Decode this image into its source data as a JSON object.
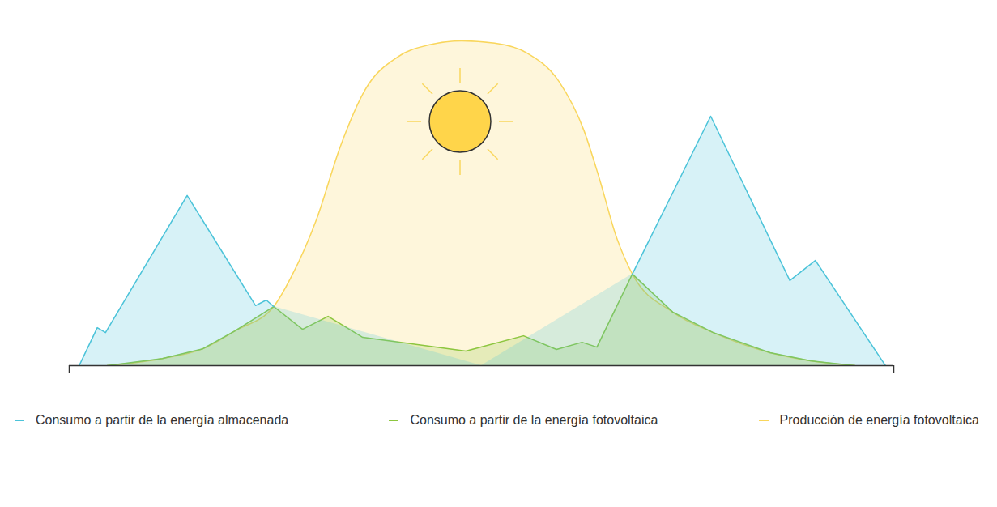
{
  "chart_data": {
    "type": "area",
    "xlim": [
      0,
      100
    ],
    "xticks": [
      0,
      100
    ],
    "ylim": [
      0,
      100
    ],
    "tick_labels": false,
    "grid": false,
    "legend": "bottom",
    "series": [
      {
        "name": "Consumo a partir de la energía almacenada",
        "color": "#4bc3d9",
        "line_style": "solid",
        "x": [
          1.2,
          3.4,
          4.4,
          14.3,
          22.6,
          23.9,
          24.8,
          50,
          68.3,
          77.8,
          87.4,
          90.5,
          99.0
        ],
        "values": [
          0,
          11.7,
          10.2,
          52.4,
          18.5,
          20.2,
          18.2,
          null,
          28.2,
          76.8,
          26.2,
          32.4,
          0
        ]
      },
      {
        "name": "Consumo a partir de la energía fotovoltaica",
        "color": "#8dc63f",
        "line_style": "solid",
        "x": [
          4.6,
          11.3,
          16.2,
          20.1,
          24.8,
          28.3,
          31.4,
          35.6,
          48.1,
          55.1,
          59.1,
          62.2,
          64.0,
          68.3,
          73.2,
          78.1,
          85.0,
          89.9,
          95.3
        ],
        "values": [
          0,
          2.2,
          5.2,
          10.7,
          18.2,
          11.2,
          15.2,
          8.7,
          4.5,
          9.2,
          5.0,
          7.2,
          5.7,
          28.2,
          16.5,
          10.2,
          4.0,
          1.5,
          0
        ]
      },
      {
        "name": "Producción de energía fotovoltaica",
        "color": "#f9d65c",
        "line_style": "smooth",
        "x": [
          4.6,
          11.3,
          16.2,
          20.1,
          24.8,
          27.0,
          30.0,
          32.9,
          35.9,
          39.8,
          43.7,
          47.6,
          51.6,
          55.5,
          59.4,
          62.4,
          64.3,
          66.3,
          68.3,
          73.2,
          78.1,
          85.0,
          89.9,
          95.3
        ],
        "values": [
          0,
          2.2,
          5.2,
          10.7,
          18.2,
          27.7,
          45.1,
          67.6,
          85.0,
          95.0,
          98.8,
          100,
          99.3,
          96.3,
          87.5,
          72.6,
          57.6,
          40.1,
          28.2,
          16.5,
          10.2,
          4.0,
          1.5,
          0
        ]
      }
    ]
  }
}
